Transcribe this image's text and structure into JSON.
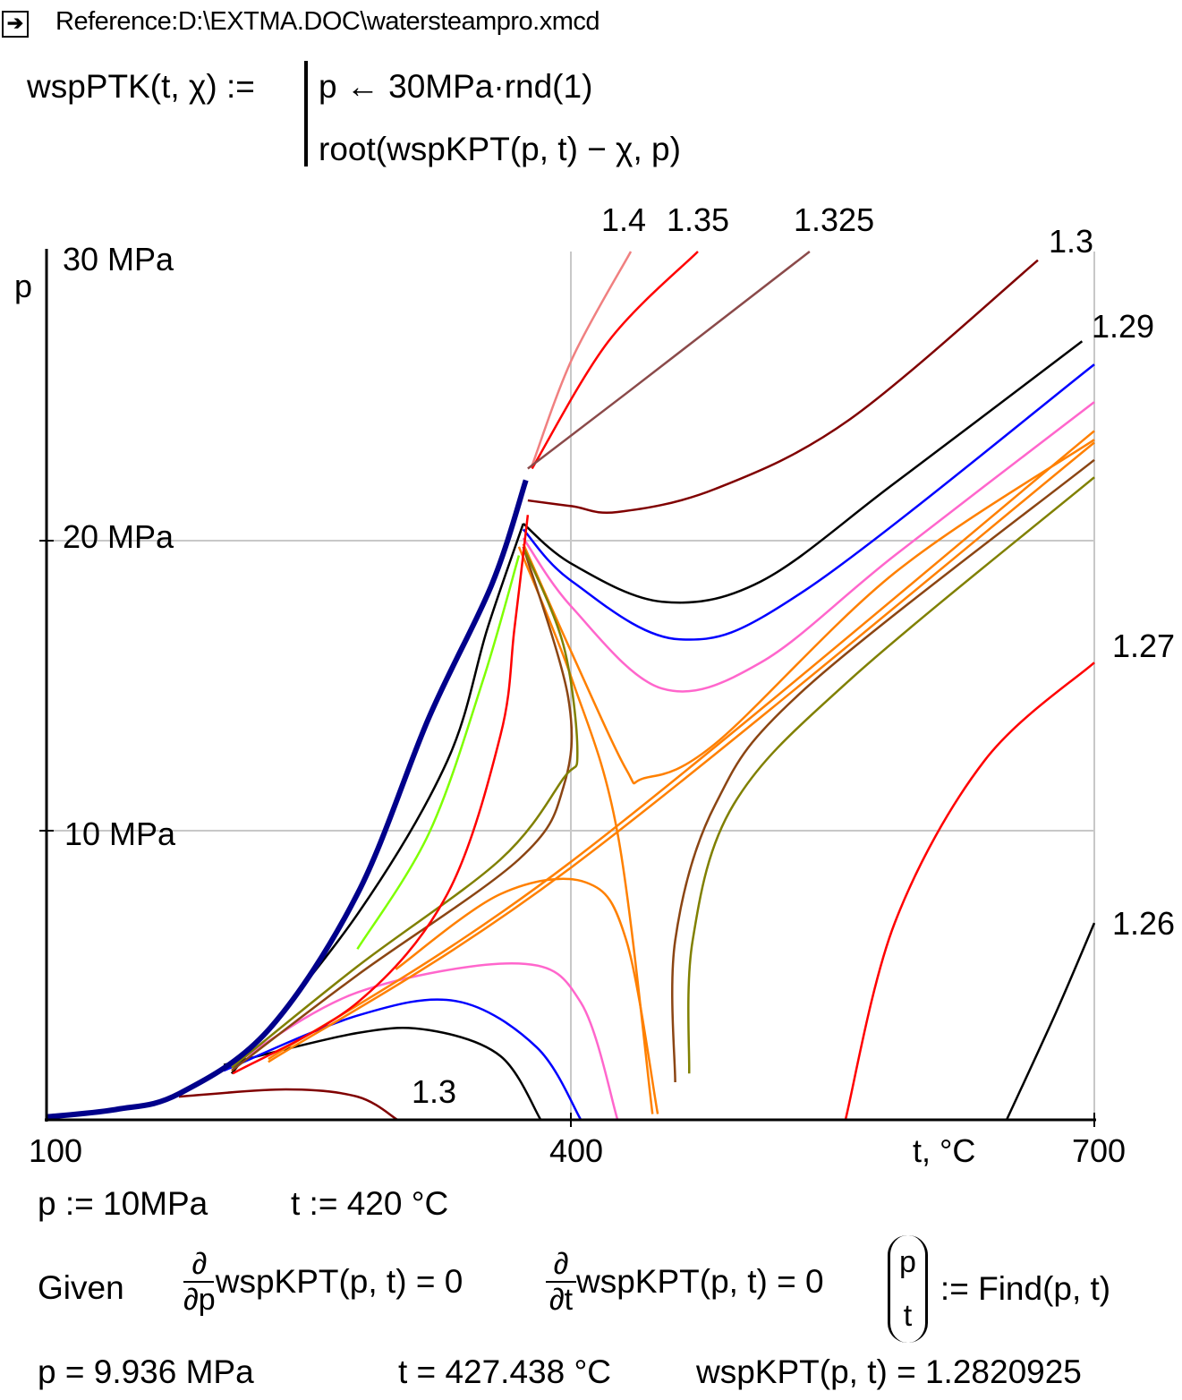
{
  "reference": {
    "icon": "arrow-right-icon",
    "text": "Reference:D:\\EXTMA.DOC\\watersteampro.xmcd"
  },
  "definition": {
    "lhs": "wspPTK(t, χ) :=",
    "line1": "p ← 30MPa·rnd(1)",
    "line2": "root(wspKPT(p, t) − χ, p)"
  },
  "assign": {
    "p": "p := 10MPa",
    "t": "t := 420 °C"
  },
  "solve": {
    "given": "Given",
    "d": "∂",
    "dp": "∂p",
    "dt": "∂t",
    "eq1": "wspKPT(p, t) = 0",
    "eq2": "wspKPT(p, t) = 0",
    "vec_p": "p",
    "vec_t": "t",
    "find": ":= Find(p, t)"
  },
  "results": {
    "p": "p = 9.936 MPa",
    "t": "t = 427.438 °C",
    "k": "wspKPT(p, t) = 1.2820925"
  },
  "chart_data": {
    "type": "line",
    "xlabel": "t, °C",
    "ylabel": "p",
    "xlim": [
      100,
      700
    ],
    "ylim": [
      0,
      30
    ],
    "xticks": [
      "100",
      "400",
      "700"
    ],
    "yticks": [
      "30 MPa",
      "20 MPa",
      "10 MPa"
    ],
    "grid": true,
    "annotations": [
      "1.4",
      "1.35",
      "1.325",
      "1.3",
      "1.29",
      "1.27",
      "1.26",
      "1.3"
    ],
    "series": [
      {
        "color": "#f08080",
        "points": [
          [
            378,
            22.6
          ],
          [
            401,
            26.3
          ],
          [
            434.6,
            30
          ]
        ]
      },
      {
        "color": "#ff0000",
        "points": [
          [
            378,
            22.5
          ],
          [
            421.8,
            26.9
          ],
          [
            473,
            30
          ]
        ]
      },
      {
        "color": "#8b4a4a",
        "points": [
          [
            375.6,
            22.5
          ],
          [
            432,
            25.1
          ],
          [
            537,
            30
          ]
        ]
      },
      {
        "color": "#800000",
        "points": [
          [
            375.6,
            21.4
          ],
          [
            401,
            21.2
          ],
          [
            427,
            21.0
          ],
          [
            483,
            21.8
          ],
          [
            560,
            24.2
          ],
          [
            667.7,
            29.7
          ]
        ]
      },
      {
        "color": "#800000",
        "points": [
          [
            175.8,
            0.8
          ],
          [
            237,
            1.05
          ],
          [
            278,
            0.8
          ],
          [
            301,
            0
          ]
        ]
      },
      {
        "color": "#000000",
        "points": [
          [
            373,
            20.6
          ],
          [
            401,
            19.2
          ],
          [
            452.5,
            17.9
          ],
          [
            509,
            18.6
          ],
          [
            585.7,
            22.0
          ],
          [
            693,
            26.9
          ]
        ]
      },
      {
        "color": "#000000",
        "points": [
          [
            201.5,
            1.9
          ],
          [
            278,
            3.0
          ],
          [
            319,
            3.1
          ],
          [
            360,
            2.2
          ],
          [
            383,
            0
          ]
        ]
      },
      {
        "color": "#000000",
        "points": [
          [
            206,
            1.6
          ],
          [
            278,
            7.1
          ],
          [
            329.5,
            12.4
          ],
          [
            352.6,
            17.0
          ],
          [
            373,
            20.6
          ]
        ]
      },
      {
        "color": "#0000ff",
        "points": [
          [
            373,
            20.4
          ],
          [
            401,
            18.6
          ],
          [
            462.7,
            16.6
          ],
          [
            534.5,
            18.3
          ],
          [
            700,
            26.1
          ]
        ]
      },
      {
        "color": "#0000ff",
        "points": [
          [
            201.5,
            1.7
          ],
          [
            278,
            3.6
          ],
          [
            334.7,
            4.1
          ],
          [
            380.8,
            2.5
          ],
          [
            406,
            0
          ]
        ]
      },
      {
        "color": "#ff66cc",
        "points": [
          [
            373,
            20.1
          ],
          [
            401,
            17.7
          ],
          [
            452.5,
            14.9
          ],
          [
            509,
            15.8
          ],
          [
            585.7,
            19.5
          ],
          [
            700,
            24.8
          ]
        ]
      },
      {
        "color": "#ff66cc",
        "points": [
          [
            206.6,
            1.9
          ],
          [
            278,
            4.4
          ],
          [
            370.5,
            5.4
          ],
          [
            406,
            4.05
          ],
          [
            427,
            0
          ]
        ]
      },
      {
        "color": "#ff8000",
        "points": [
          [
            373,
            19.9
          ],
          [
            401,
            16.1
          ],
          [
            432,
            12.1
          ],
          [
            442,
            11.8
          ],
          [
            483,
            13.0
          ],
          [
            585.7,
            18.9
          ],
          [
            700,
            23.5
          ]
        ]
      },
      {
        "color": "#ff8000",
        "points": [
          [
            227,
            2.0
          ],
          [
            400,
            8.7
          ],
          [
            700,
            23.4
          ]
        ]
      },
      {
        "color": "#ff8000",
        "points": [
          [
            227,
            2.1
          ],
          [
            400,
            8.9
          ],
          [
            700,
            23.8
          ]
        ]
      },
      {
        "color": "#ff8000",
        "points": [
          [
            370.5,
            19.8
          ],
          [
            401,
            15.2
          ],
          [
            427,
            9.9
          ],
          [
            447,
            0.2
          ]
        ]
      },
      {
        "color": "#ff8000",
        "points": [
          [
            300,
            5.2
          ],
          [
            360,
            7.8
          ],
          [
            409,
            8.2
          ],
          [
            432,
            6.2
          ],
          [
            450,
            0.2
          ]
        ]
      },
      {
        "color": "#8b4513",
        "points": [
          [
            206,
            1.7
          ],
          [
            278,
            5.0
          ],
          [
            370.5,
            9.0
          ],
          [
            396,
            11.5
          ],
          [
            398.7,
            14.6
          ],
          [
            373,
            19.8
          ]
        ]
      },
      {
        "color": "#8b4513",
        "points": [
          [
            460,
            1.3
          ],
          [
            460,
            6.2
          ],
          [
            483,
            10.9
          ],
          [
            534.5,
            14.9
          ],
          [
            700,
            22.8
          ]
        ]
      },
      {
        "color": "#808000",
        "points": [
          [
            206,
            1.8
          ],
          [
            278,
            5.3
          ],
          [
            360,
            9.0
          ],
          [
            396,
            11.8
          ],
          [
            404,
            12.7
          ],
          [
            396,
            16.4
          ],
          [
            373,
            19.8
          ]
        ]
      },
      {
        "color": "#808000",
        "points": [
          [
            468,
            1.6
          ],
          [
            470,
            6.2
          ],
          [
            493.5,
            10.9
          ],
          [
            560,
            15.2
          ],
          [
            700,
            22.2
          ]
        ]
      },
      {
        "color": "#ff0000",
        "points": [
          [
            206.6,
            1.6
          ],
          [
            278,
            4.05
          ],
          [
            329.5,
            7.8
          ],
          [
            360,
            13.3
          ],
          [
            368,
            17.0
          ],
          [
            375.6,
            20.9
          ]
        ]
      },
      {
        "color": "#ff0000",
        "points": [
          [
            557.5,
            0
          ],
          [
            585.7,
            6.8
          ],
          [
            637,
            12.4
          ],
          [
            700,
            15.8
          ]
        ]
      },
      {
        "color": "#000000",
        "points": [
          [
            649.8,
            0
          ],
          [
            678,
            3.7
          ],
          [
            700,
            6.8
          ]
        ]
      },
      {
        "color": "#7fff00",
        "points": [
          [
            278,
            5.9
          ],
          [
            319,
            9.9
          ],
          [
            350,
            15.2
          ],
          [
            370.5,
            19.5
          ]
        ]
      },
      {
        "color": "#00008b",
        "width": 6,
        "points": [
          [
            100,
            0.1
          ],
          [
            140,
            0.36
          ],
          [
            175.8,
            0.9
          ],
          [
            227,
            3.1
          ],
          [
            278,
            7.8
          ],
          [
            319,
            13.9
          ],
          [
            355,
            18.5
          ],
          [
            374.5,
            22.1
          ]
        ]
      }
    ]
  }
}
